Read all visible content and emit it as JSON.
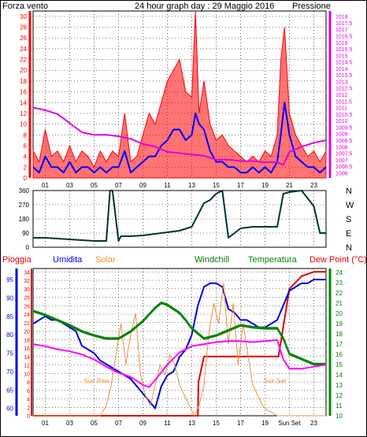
{
  "colors": {
    "wind": "#ff0000",
    "gust_red": "#ff0000",
    "wind_avg": "#0000ff",
    "pressure": "#e000e0",
    "direction": "#003333",
    "rain": "#e00000",
    "humidity": "#0000dd",
    "solar": "#f09040",
    "windchill": "#007700",
    "temperature": "#008800",
    "dewpoint": "#ff00ff",
    "title": "#000080",
    "tick": "#000000"
  },
  "chart_data": [
    {
      "id": "wind-pressure",
      "type": "line",
      "title": "24 hour graph day : 29 Maggio 2016",
      "left_label": "Forza vento",
      "right_label": "Pressione",
      "x_ticks": [
        "01",
        "03",
        "05",
        "07",
        "09",
        "11",
        "13",
        "15",
        "17",
        "19",
        "21",
        "23"
      ],
      "x_range": [
        0,
        24
      ],
      "y_left": {
        "range": [
          0,
          31
        ],
        "ticks": [
          0,
          2,
          4,
          6,
          8,
          10,
          12,
          14,
          16,
          18,
          20,
          22,
          24,
          26,
          28,
          30
        ]
      },
      "y_right": {
        "range": [
          1005.6,
          1018.4
        ],
        "ticks": [
          "1006",
          "1006.5",
          "1007",
          "1007.5",
          "1008",
          "1008.5",
          "1009",
          "1009.5",
          "1010",
          "1010.5",
          "1011",
          "1011.5",
          "1012",
          "1012.5",
          "1013",
          "1013.5",
          "1014",
          "1014.5",
          "1015",
          "1015.5",
          "1016",
          "1016.5",
          "1017",
          "1017.5",
          "1018"
        ]
      },
      "series": [
        {
          "key": "gust",
          "x": [
            0,
            0.5,
            1,
            1.5,
            2,
            2.5,
            3,
            3.5,
            4,
            4.5,
            5,
            5.5,
            6,
            6.5,
            7,
            7.5,
            8,
            8.5,
            9,
            9.5,
            10,
            10.5,
            11,
            11.5,
            12,
            12.5,
            13,
            13.3,
            13.6,
            14,
            14.5,
            15,
            15.5,
            16,
            16.5,
            17,
            17.5,
            18,
            18.5,
            19,
            19.5,
            20,
            20.3,
            20.6,
            21,
            21.5,
            22,
            22.5,
            23,
            23.5,
            24
          ],
          "y": [
            5,
            3,
            9,
            4,
            5,
            3,
            6,
            3,
            5,
            4,
            2,
            5,
            3,
            5,
            4,
            12,
            3,
            4,
            8,
            12,
            10,
            14,
            18,
            20,
            22,
            16,
            15,
            31,
            12,
            18,
            10,
            7,
            8,
            6,
            5,
            4,
            3,
            4,
            3,
            5,
            4,
            8,
            22,
            28,
            12,
            8,
            6,
            4,
            5,
            3,
            5
          ]
        },
        {
          "key": "average",
          "x": [
            0,
            0.5,
            1,
            1.5,
            2,
            2.5,
            3,
            3.5,
            4,
            4.5,
            5,
            5.5,
            6,
            6.5,
            7,
            7.5,
            8,
            8.5,
            9,
            9.5,
            10,
            10.5,
            11,
            11.5,
            12,
            12.5,
            13,
            13.3,
            13.6,
            14,
            14.5,
            15,
            15.5,
            16,
            16.5,
            17,
            17.5,
            18,
            18.5,
            19,
            19.5,
            20,
            20.3,
            20.6,
            21,
            21.5,
            22,
            22.5,
            23,
            23.5,
            24
          ],
          "y": [
            2,
            1,
            4,
            2,
            2,
            1,
            3,
            1,
            2,
            2,
            1,
            2,
            1,
            2,
            2,
            5,
            1,
            2,
            3,
            4,
            4,
            6,
            7,
            9,
            9,
            7,
            8,
            12,
            10,
            9,
            5,
            3,
            3,
            2,
            2,
            1,
            1,
            2,
            1,
            2,
            1,
            3,
            8,
            14,
            8,
            4,
            3,
            2,
            2,
            1,
            2
          ]
        },
        {
          "key": "pressure",
          "x": [
            0,
            1,
            2,
            3,
            4,
            5,
            6,
            7,
            8,
            9,
            10,
            11,
            12,
            13,
            14,
            15,
            16,
            17,
            18,
            19,
            20,
            20.5,
            21,
            22,
            23,
            24
          ],
          "y": [
            1011.0,
            1010.8,
            1010.5,
            1009.8,
            1009.1,
            1008.9,
            1008.9,
            1008.8,
            1008.6,
            1008.2,
            1008.0,
            1007.6,
            1007.5,
            1007.4,
            1007.3,
            1007.0,
            1007.0,
            1006.9,
            1006.9,
            1006.8,
            1006.8,
            1006.6,
            1007.6,
            1008.0,
            1008.3,
            1008.5
          ]
        }
      ]
    },
    {
      "id": "wind-direction",
      "type": "line",
      "y_ticks": [
        0,
        90,
        180,
        270,
        360
      ],
      "y_range": [
        0,
        360
      ],
      "direction_labels": [
        "N",
        "W",
        "S",
        "E",
        "N"
      ],
      "x_range": [
        0,
        24
      ],
      "series": [
        {
          "key": "direction",
          "x": [
            0,
            1,
            2,
            3,
            4,
            5,
            6,
            6.3,
            6.5,
            7,
            7.2,
            8,
            9,
            10,
            11,
            12,
            13,
            14,
            14.5,
            15,
            15.5,
            16,
            17,
            18,
            19,
            20,
            20.5,
            21,
            22,
            23,
            23.5,
            24
          ],
          "y": [
            60,
            60,
            55,
            50,
            45,
            40,
            40,
            360,
            360,
            40,
            70,
            70,
            75,
            85,
            95,
            105,
            130,
            280,
            300,
            340,
            360,
            60,
            120,
            130,
            130,
            130,
            340,
            350,
            360,
            260,
            90,
            90
          ]
        }
      ]
    },
    {
      "id": "rain-humidity-temperature",
      "type": "line",
      "top_labels": [
        "Pioggia",
        "Umidita",
        "Solar",
        "Windchill",
        "Temperatura",
        "Dew Point (°C)"
      ],
      "x_ticks": [
        "01",
        "03",
        "05",
        "07",
        "09",
        "11",
        "13",
        "15",
        "17",
        "19",
        "Sun Set",
        "23"
      ],
      "x_range": [
        0,
        24
      ],
      "y_rain": {
        "range": [
          0,
          34.8
        ],
        "ticks": [
          0,
          2,
          4,
          6,
          8,
          10,
          12,
          14,
          16,
          18,
          20,
          22,
          24,
          26,
          28,
          30,
          32,
          34
        ]
      },
      "y_humidity": {
        "range": [
          58,
          98
        ],
        "ticks": [
          60,
          65,
          70,
          75,
          80,
          85,
          90,
          95
        ]
      },
      "y_temp": {
        "range": [
          10,
          24.4
        ],
        "ticks": [
          10,
          11,
          12,
          13,
          14,
          15,
          16,
          17,
          18,
          19,
          20,
          21,
          22,
          23,
          24
        ]
      },
      "annotations": [
        {
          "text": "Sun Rise",
          "x": 5.2,
          "y_temp": 13.2
        },
        {
          "text": "Sun Set",
          "x": 19.8,
          "y_temp": 13.2
        }
      ],
      "series": [
        {
          "key": "rain",
          "axis": "rain",
          "x": [
            0,
            13.5,
            13.55,
            14,
            20,
            20.1,
            21,
            22,
            23,
            24
          ],
          "y": [
            0,
            0,
            8,
            14,
            14,
            14,
            30,
            33,
            34,
            34
          ]
        },
        {
          "key": "humidity",
          "axis": "humidity",
          "x": [
            0,
            0.5,
            1,
            1.5,
            2,
            2.5,
            3,
            3.5,
            4,
            4.5,
            5,
            5.5,
            6,
            6.5,
            7,
            7.5,
            8,
            8.5,
            9,
            9.5,
            10,
            10.5,
            11,
            11.5,
            12,
            12.5,
            13,
            13.5,
            14,
            14.5,
            15,
            15.5,
            16,
            16.5,
            17,
            17.5,
            18,
            18.5,
            19,
            19.5,
            20,
            20.5,
            21,
            21.5,
            22,
            22.5,
            23,
            23.5,
            24
          ],
          "y": [
            83,
            84,
            85,
            84,
            84,
            83,
            82,
            81,
            77,
            76,
            75,
            73,
            72,
            71,
            70,
            69,
            68,
            66,
            64,
            62,
            60,
            66,
            69,
            70,
            74,
            76,
            80,
            88,
            93,
            94,
            94,
            93,
            87,
            86,
            84,
            84,
            83,
            82,
            82,
            83,
            84,
            88,
            92,
            93,
            94,
            94,
            95,
            95,
            95
          ]
        },
        {
          "key": "solar",
          "axis": "temp",
          "x": [
            0,
            5.5,
            6,
            6.4,
            6.8,
            7.2,
            7.6,
            8,
            8.4,
            8.8,
            9.2,
            9.6,
            10,
            10.4,
            10.8,
            11.2,
            11.6,
            12,
            12.4,
            12.8,
            13.2,
            13.6,
            14,
            14.4,
            14.8,
            15.2,
            15.6,
            16,
            16.4,
            16.8,
            17.2,
            17.6,
            18,
            18.4,
            18.8,
            19.2,
            19.6,
            20,
            24
          ],
          "y": [
            10,
            10,
            11,
            13,
            16,
            19,
            15,
            18,
            20,
            14,
            12,
            11,
            13,
            15,
            14,
            16,
            15,
            13,
            12,
            11,
            10,
            11,
            13,
            18,
            21,
            19,
            23,
            17,
            21,
            15,
            19,
            16,
            13,
            12,
            11,
            10.5,
            10.3,
            10,
            10
          ]
        },
        {
          "key": "windchill",
          "axis": "temp",
          "x": [
            0,
            1,
            2,
            3,
            4,
            5,
            6,
            7,
            8,
            9,
            10,
            10.5,
            11,
            12,
            12.5,
            13,
            14,
            15,
            16,
            17,
            18,
            19,
            20,
            20.5,
            21,
            22,
            23,
            24
          ],
          "y": [
            20.2,
            19.8,
            19.3,
            18.8,
            18.2,
            17.8,
            17.5,
            17.5,
            18.2,
            19.2,
            20.5,
            21.0,
            20.8,
            20.0,
            19.3,
            18.5,
            17.5,
            17.8,
            18.3,
            18.8,
            18.6,
            18.5,
            18.5,
            17.5,
            16.0,
            15.5,
            15.0,
            15.0
          ]
        },
        {
          "key": "temperature",
          "axis": "temp",
          "x": [
            0,
            1,
            2,
            3,
            4,
            5,
            6,
            7,
            8,
            9,
            10,
            10.5,
            11,
            12,
            12.5,
            13,
            14,
            15,
            16,
            17,
            18,
            19,
            20,
            20.5,
            21,
            22,
            23,
            24
          ],
          "y": [
            20.3,
            19.9,
            19.4,
            18.9,
            18.3,
            17.9,
            17.6,
            17.6,
            18.3,
            19.3,
            20.6,
            21.1,
            20.9,
            20.1,
            19.4,
            18.6,
            17.6,
            17.9,
            18.4,
            18.9,
            18.7,
            18.6,
            18.6,
            17.6,
            16.1,
            15.6,
            15.1,
            15.1
          ]
        },
        {
          "key": "dewpoint",
          "axis": "temp",
          "x": [
            0,
            1,
            2,
            3,
            4,
            5,
            6,
            7,
            8,
            9,
            9.5,
            10,
            11,
            12,
            13,
            14,
            15,
            16,
            17,
            18,
            19,
            20,
            20.5,
            21,
            22,
            23,
            24
          ],
          "y": [
            17.0,
            16.8,
            16.5,
            16.3,
            16.0,
            15.5,
            14.8,
            14.2,
            13.8,
            13.0,
            12.8,
            13.5,
            15.0,
            16.2,
            16.8,
            17.0,
            17.2,
            17.3,
            17.3,
            17.2,
            17.3,
            17.4,
            15.5,
            14.6,
            14.6,
            14.8,
            15.0
          ]
        }
      ]
    }
  ]
}
